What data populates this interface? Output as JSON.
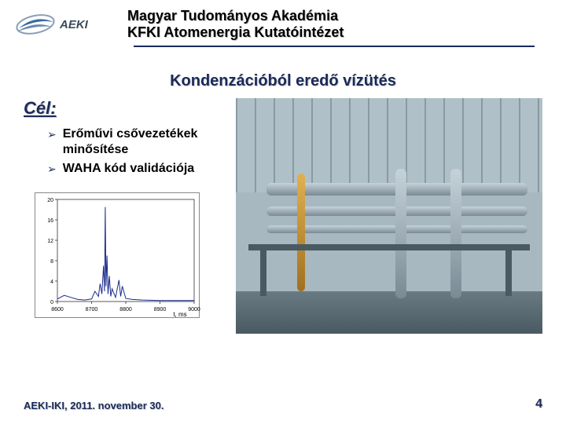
{
  "logo_text": "AEKI",
  "header": {
    "line1": "Magyar Tudományos Akadémia",
    "line2": "KFKI Atomenergia Kutatóintézet"
  },
  "slide_title": "Kondenzációból eredő vízütés",
  "goal_heading": "Cél:",
  "bullets": [
    "Erőművi csővezetékek minősítése",
    "WAHA kód validációja"
  ],
  "chart": {
    "type": "line",
    "xlim": [
      8600,
      9000
    ],
    "xtick_step": 100,
    "xticks": [
      8600,
      8700,
      8800,
      8900,
      9000
    ],
    "ylim": [
      0,
      20
    ],
    "ytick_step": 4,
    "yticks": [
      0,
      4,
      8,
      12,
      16,
      20
    ],
    "xlabel": "t, ms",
    "line_color": "#1a2a8a",
    "background_color": "#ffffff",
    "grid_color": "#cccccc",
    "line_width": 1,
    "label_fontsize": 8,
    "tick_fontsize": 7,
    "data": [
      [
        8600,
        0.5
      ],
      [
        8620,
        1.2
      ],
      [
        8640,
        0.8
      ],
      [
        8660,
        0.4
      ],
      [
        8680,
        0.3
      ],
      [
        8700,
        0.5
      ],
      [
        8710,
        2.0
      ],
      [
        8720,
        1.0
      ],
      [
        8725,
        3.5
      ],
      [
        8730,
        1.5
      ],
      [
        8735,
        7.0
      ],
      [
        8738,
        2.0
      ],
      [
        8740,
        18.5
      ],
      [
        8742,
        3.0
      ],
      [
        8745,
        9.0
      ],
      [
        8748,
        1.5
      ],
      [
        8752,
        5.0
      ],
      [
        8756,
        1.0
      ],
      [
        8760,
        2.5
      ],
      [
        8770,
        0.8
      ],
      [
        8780,
        4.2
      ],
      [
        8785,
        1.0
      ],
      [
        8790,
        3.0
      ],
      [
        8800,
        0.6
      ],
      [
        8820,
        0.4
      ],
      [
        8850,
        0.3
      ],
      [
        8900,
        0.2
      ],
      [
        8950,
        0.2
      ],
      [
        9000,
        0.2
      ]
    ]
  },
  "photo": {
    "description": "industrial piping rig",
    "bg_color": "#a8b8c0"
  },
  "footer": "AEKI-IKI, 2011. november 30.",
  "page_number": "4",
  "colors": {
    "accent": "#1a2a5a",
    "text": "#000000",
    "shadow": "#cccccc"
  }
}
